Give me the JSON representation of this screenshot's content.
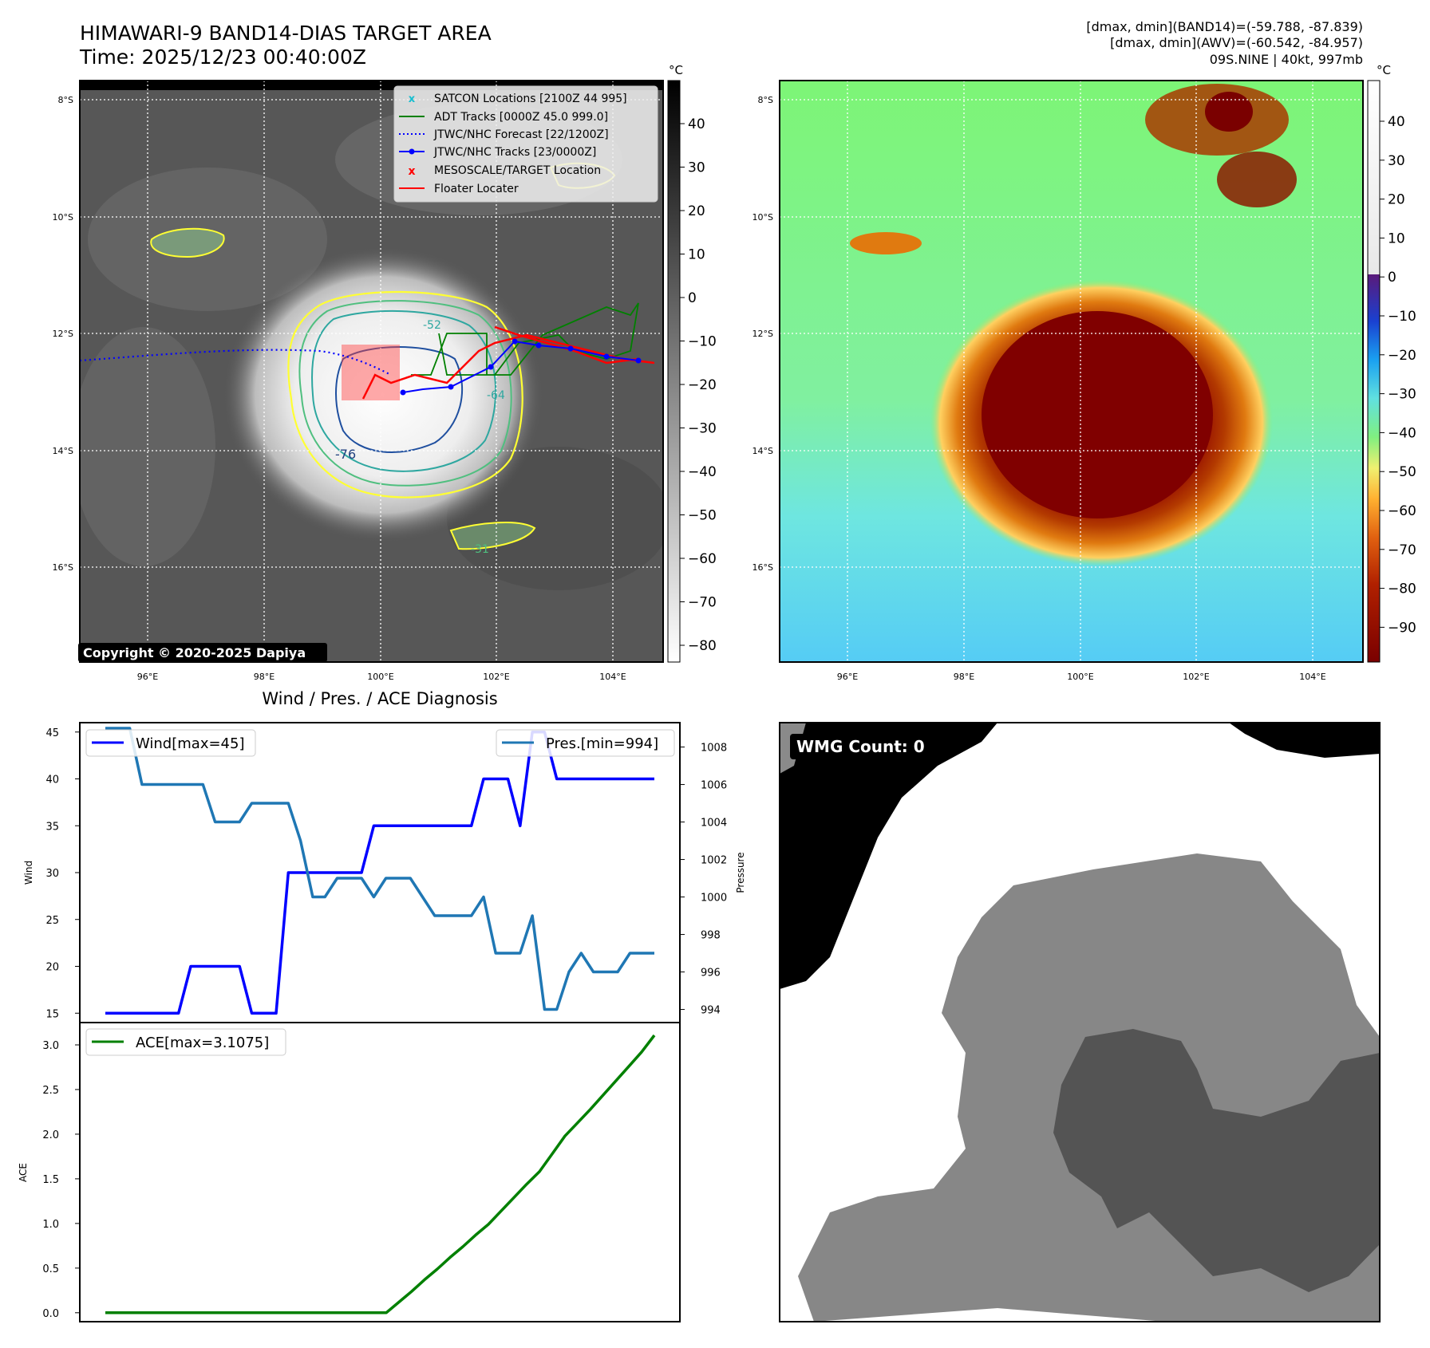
{
  "header": {
    "title": "HIMAWARI-9 BAND14-DIAS TARGET AREA",
    "time": "Time: 2025/12/23 00:40:00Z",
    "stat1": "[dmax, dmin](BAND14)=(-59.788, -87.839)",
    "stat2": "[dmax, dmin](AWV)=(-60.542, -84.957)",
    "stat3": "09S.NINE | 40kt, 997mb"
  },
  "map": {
    "lat_labels": [
      "8°S",
      "10°S",
      "12°S",
      "14°S",
      "16°S"
    ],
    "lon_labels": [
      "96°E",
      "98°E",
      "100°E",
      "102°E",
      "104°E"
    ],
    "copyright": "Copyright © 2020-2025 Dapiya",
    "contour_labels": [
      "-76",
      "-64",
      "-52",
      "-31",
      "-64",
      "-31"
    ],
    "legend": [
      {
        "label": "SATCON Locations [2100Z 44 995]",
        "color": "#17becf",
        "marker": "x"
      },
      {
        "label": "ADT Tracks [0000Z 45.0 999.0]",
        "color": "#008000",
        "marker": "line"
      },
      {
        "label": "JTWC/NHC Forecast [22/1200Z]",
        "color": "#0000ff",
        "marker": "dotted"
      },
      {
        "label": "JTWC/NHC Tracks [23/0000Z]",
        "color": "#0000ff",
        "marker": "line-dot"
      },
      {
        "label": "MESOSCALE/TARGET Location",
        "color": "#ff0000",
        "marker": "x"
      },
      {
        "label": "Floater Locater",
        "color": "#ff0000",
        "marker": "line"
      }
    ]
  },
  "colorbar_gray": {
    "unit": "°C",
    "ticks": [
      "40",
      "30",
      "20",
      "10",
      "0",
      "−10",
      "−20",
      "−30",
      "−40",
      "−50",
      "−60",
      "−70",
      "−80"
    ]
  },
  "colorbar_color": {
    "unit": "°C",
    "ticks": [
      "40",
      "30",
      "20",
      "10",
      "0",
      "−10",
      "−20",
      "−30",
      "−40",
      "−50",
      "−60",
      "−70",
      "−80",
      "−90"
    ]
  },
  "diag": {
    "title": "Wind / Pres. / ACE Diagnosis",
    "wmg": "WMG Count: 0"
  },
  "chart_data": [
    {
      "type": "line",
      "title": "Wind / Pres. / ACE Diagnosis",
      "ylabel": "Wind",
      "y2label": "Pressure",
      "ylim": [
        14,
        46
      ],
      "y2lim": [
        993.3,
        1009.3
      ],
      "yticks": [
        "15",
        "20",
        "25",
        "30",
        "35",
        "40",
        "45"
      ],
      "y2ticks": [
        "994",
        "996",
        "998",
        "1000",
        "1002",
        "1004",
        "1006",
        "1008"
      ],
      "series": [
        {
          "name": "Wind[max=45]",
          "color": "#0000ff",
          "values": [
            15,
            15,
            15,
            15,
            15,
            15,
            15,
            20,
            20,
            20,
            20,
            20,
            15,
            15,
            15,
            30,
            30,
            30,
            30,
            30,
            30,
            30,
            35,
            35,
            35,
            35,
            35,
            35,
            35,
            35,
            35,
            40,
            40,
            40,
            35,
            45,
            45,
            40,
            40,
            40,
            40,
            40,
            40,
            40,
            40,
            40
          ]
        },
        {
          "name": "Pres.[min=994]",
          "color": "#1f77b4",
          "axis": "right",
          "values": [
            1009,
            1009,
            1009,
            1006,
            1006,
            1006,
            1006,
            1006,
            1006,
            1004,
            1004,
            1004,
            1005,
            1005,
            1005,
            1005,
            1003,
            1000,
            1000,
            1001,
            1001,
            1001,
            1000,
            1001,
            1001,
            1001,
            1000,
            999,
            999,
            999,
            999,
            1000,
            997,
            997,
            997,
            999,
            994,
            994,
            996,
            997,
            996,
            996,
            996,
            997,
            997,
            997
          ]
        }
      ]
    },
    {
      "type": "line",
      "ylabel": "ACE",
      "ylim": [
        -0.1,
        3.25
      ],
      "yticks": [
        "0.0",
        "0.5",
        "1.0",
        "1.5",
        "2.0",
        "2.5",
        "3.0"
      ],
      "series": [
        {
          "name": "ACE[max=3.1075]",
          "color": "#008000",
          "values": [
            0,
            0,
            0,
            0,
            0,
            0,
            0,
            0,
            0,
            0,
            0,
            0,
            0,
            0,
            0,
            0,
            0,
            0,
            0,
            0,
            0,
            0,
            0,
            0.12,
            0.24,
            0.37,
            0.49,
            0.62,
            0.74,
            0.87,
            0.99,
            1.14,
            1.29,
            1.44,
            1.58,
            1.78,
            1.98,
            2.13,
            2.28,
            2.44,
            2.6,
            2.76,
            2.92,
            3.1075
          ]
        }
      ]
    }
  ]
}
